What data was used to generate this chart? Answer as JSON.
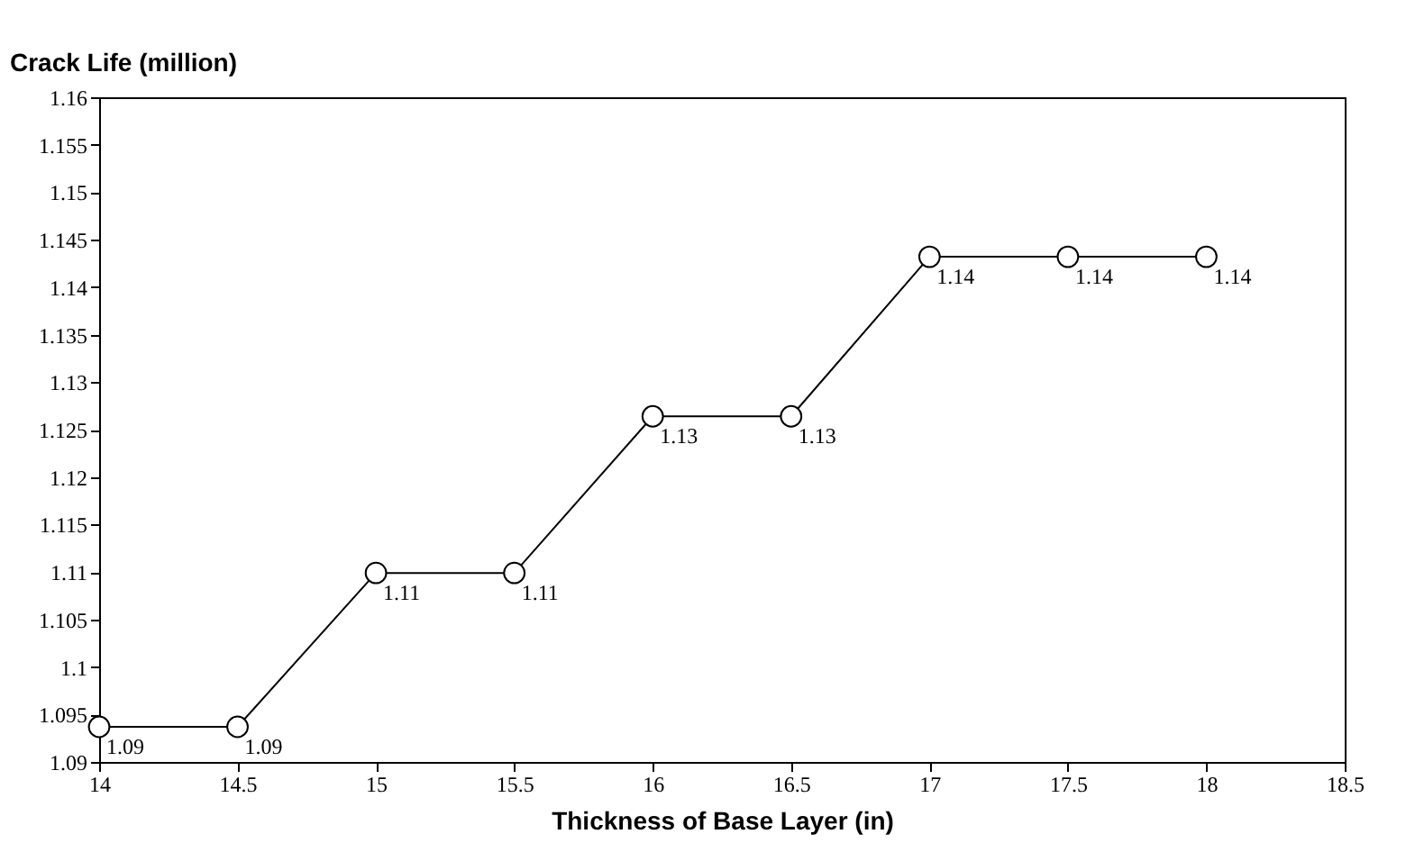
{
  "chart_data": {
    "type": "line",
    "ylabel": "Crack Life (million)",
    "xlabel": "Thickness of Base Layer (in)",
    "x": [
      14,
      14.5,
      15,
      15.5,
      16,
      16.5,
      17,
      17.5,
      18
    ],
    "series": [
      {
        "color": "#000000",
        "values": [
          1.0937,
          1.0937,
          1.1099,
          1.1099,
          1.1264,
          1.1264,
          1.1432,
          1.1432,
          1.1432
        ],
        "value_labels": [
          "1.09",
          "1.09",
          "1.11",
          "1.11",
          "1.13",
          "1.13",
          "1.14",
          "1.14",
          "1.14"
        ]
      }
    ],
    "xlim": [
      14,
      18.5
    ],
    "xticks": [
      14,
      14.5,
      15,
      15.5,
      16,
      16.5,
      17,
      17.5,
      18,
      18.5
    ],
    "ylim": [
      1.09,
      1.16
    ],
    "yticks": [
      1.09,
      1.095,
      1.1,
      1.105,
      1.11,
      1.115,
      1.12,
      1.125,
      1.13,
      1.135,
      1.14,
      1.145,
      1.15,
      1.155,
      1.16
    ],
    "marker": "circle",
    "line_style": "solid",
    "grid": false
  }
}
